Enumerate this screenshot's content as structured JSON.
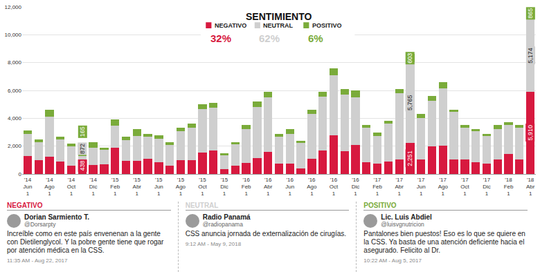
{
  "chart_data": {
    "type": "bar",
    "stacked": true,
    "grid": true,
    "data_labels": true,
    "legend": "top",
    "legend_title": "SENTIMIENTO",
    "categories": [
      "'14\nJun\n1",
      null,
      "'14\nAgo\n1",
      null,
      "'14\nOct\n1",
      null,
      "'14\nDic\n1",
      null,
      "'15\nFeb\n1",
      null,
      "'15\nAbr\n1",
      null,
      "'15\nJun\n1",
      null,
      "'15\nAgo\n1",
      null,
      "'15\nOct\n1",
      null,
      "'15\nDic\n1",
      null,
      "'16\nFeb\n1",
      null,
      "'16\nAbr\n1",
      null,
      "'16\nJun\n1",
      null,
      "'16\nAgo\n1",
      null,
      "'16\nOct\n1",
      null,
      "'16\nDic\n1",
      null,
      "'17\nFeb\n1",
      null,
      "'17\nAbr\n1",
      null,
      "'17\nJun\n1",
      null,
      "'17\nAgo\n1",
      null,
      "'17\nOct\n1",
      null,
      "'17\nDic\n1",
      null,
      "'18\nFeb\n1",
      null,
      "'18\nAbr\n1"
    ],
    "series": [
      {
        "name": "NEGATIVO",
        "color": "#d7193f",
        "share": "32%",
        "values": [
          1300,
          1000,
          1250,
          900,
          600,
          438,
          650,
          700,
          1900,
          950,
          950,
          1100,
          850,
          600,
          1000,
          1000,
          1550,
          1700,
          350,
          600,
          800,
          1150,
          1600,
          750,
          750,
          400,
          1100,
          1700,
          2800,
          1650,
          2100,
          850,
          750,
          900,
          1050,
          2251,
          1050,
          2000,
          2050,
          1050,
          1050,
          850,
          750,
          1050,
          1450,
          1050,
          5910
        ],
        "value_labels": [
          null,
          null,
          null,
          null,
          null,
          "438",
          null,
          null,
          null,
          null,
          null,
          null,
          null,
          null,
          null,
          null,
          null,
          null,
          null,
          null,
          null,
          null,
          null,
          null,
          null,
          null,
          null,
          null,
          null,
          null,
          null,
          null,
          null,
          null,
          null,
          "2,251",
          null,
          null,
          null,
          null,
          null,
          null,
          null,
          null,
          null,
          null,
          "5,910"
        ]
      },
      {
        "name": "NEUTRAL",
        "color": "#cfcfcf",
        "share": "62%",
        "values": [
          1600,
          1300,
          2850,
          1600,
          1400,
          872,
          1250,
          1050,
          1550,
          1500,
          1800,
          1600,
          1700,
          1500,
          2050,
          2300,
          3100,
          3050,
          1000,
          1550,
          2400,
          3650,
          3900,
          1950,
          2150,
          1850,
          3200,
          3850,
          4300,
          4050,
          3400,
          2450,
          2000,
          2700,
          4750,
          5765,
          2950,
          3250,
          4100,
          3400,
          2250,
          2200,
          2000,
          2150,
          2050,
          2250,
          5174
        ],
        "value_labels": [
          null,
          null,
          null,
          null,
          null,
          "872",
          null,
          null,
          null,
          null,
          null,
          null,
          null,
          null,
          null,
          null,
          null,
          null,
          null,
          null,
          null,
          null,
          null,
          null,
          null,
          null,
          null,
          null,
          null,
          null,
          null,
          null,
          null,
          null,
          null,
          "5,765",
          null,
          null,
          null,
          null,
          null,
          null,
          null,
          null,
          null,
          null,
          "5,174"
        ]
      },
      {
        "name": "POSITIVO",
        "color": "#7aab3a",
        "share": "6%",
        "values": [
          200,
          200,
          500,
          200,
          200,
          165,
          400,
          150,
          450,
          250,
          450,
          200,
          250,
          200,
          250,
          300,
          350,
          350,
          150,
          150,
          300,
          400,
          400,
          200,
          300,
          150,
          300,
          350,
          500,
          400,
          500,
          200,
          250,
          200,
          300,
          603,
          300,
          350,
          450,
          150,
          200,
          150,
          150,
          300,
          200,
          200,
          865
        ],
        "value_labels": [
          null,
          null,
          null,
          null,
          null,
          "165",
          null,
          null,
          null,
          null,
          null,
          null,
          null,
          null,
          null,
          null,
          null,
          null,
          null,
          null,
          null,
          null,
          null,
          null,
          null,
          null,
          null,
          null,
          null,
          null,
          null,
          null,
          null,
          null,
          null,
          "603",
          null,
          null,
          null,
          null,
          null,
          null,
          null,
          null,
          null,
          null,
          "865"
        ]
      }
    ],
    "ylim": [
      0,
      12000
    ],
    "yticks": [
      0,
      {
        "value": 2000,
        "label": "2,000"
      },
      {
        "value": 4000,
        "label": "4,000"
      },
      {
        "value": 6000,
        "label": "6,000"
      },
      {
        "value": 8000,
        "label": "8,000"
      },
      {
        "value": 10000,
        "label": "10,000"
      },
      {
        "value": 12000,
        "label": "12,000"
      }
    ]
  },
  "tweets": [
    {
      "sentiment": "NEGATIVO",
      "name": "Dorian Sarmiento T.",
      "handle": "@Dorsarpty",
      "text": "Increíble como en este país envenenan a la gente con Dietilenglycol. Y la pobre gente tiene que rogar por atención médica en la CSS.",
      "time": "11:35 AM - Aug 22, 2017"
    },
    {
      "sentiment": "NEUTRAL",
      "name": "Radio Panamá",
      "handle": "@radiopanama",
      "text": "CSS anuncia jornada de externalización de cirugías.",
      "time": "9:12 AM - May 9, 2018"
    },
    {
      "sentiment": "POSITIVO",
      "name": "Lic. Luis Abdiel",
      "handle": "@luisvgnutricion",
      "text": "Pantalones bien puestos! Eso es lo que se quiere en la CSS. Ya basta de una atención deficiente hacia el asegurado. Felicito al Dr.",
      "time": "10:22 AM - Aug 5, 2017"
    }
  ]
}
